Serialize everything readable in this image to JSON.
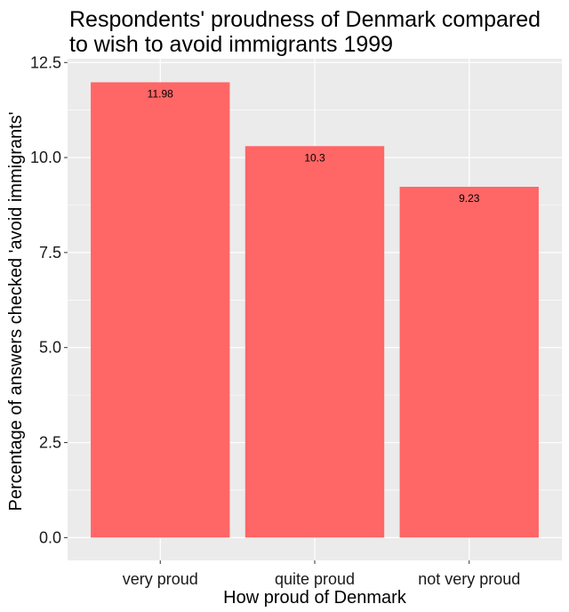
{
  "chart_data": {
    "type": "bar",
    "title_lines": [
      "Respondents' proudness of Denmark compared",
      "to wish to avoid immigrants 1999"
    ],
    "xlabel": "How proud of Denmark",
    "ylabel": "Percentage of answers checked 'avoid immigrants'",
    "categories": [
      "very proud",
      "quite proud",
      "not very proud"
    ],
    "values": [
      11.98,
      10.3,
      9.23
    ],
    "data_labels": [
      "11.98",
      "10.3",
      "9.23"
    ],
    "y_ticks": [
      0,
      2.5,
      5,
      7.5,
      10,
      12.5
    ],
    "y_tick_labels": [
      "0.0",
      "2.5",
      "5.0",
      "7.5",
      "10.0",
      "12.5"
    ],
    "ylim": [
      -0.6,
      12.6
    ],
    "grid": true,
    "colors": {
      "bar": "#FF6666",
      "panel": "#EBEBEB",
      "grid": "#FFFFFF"
    }
  }
}
